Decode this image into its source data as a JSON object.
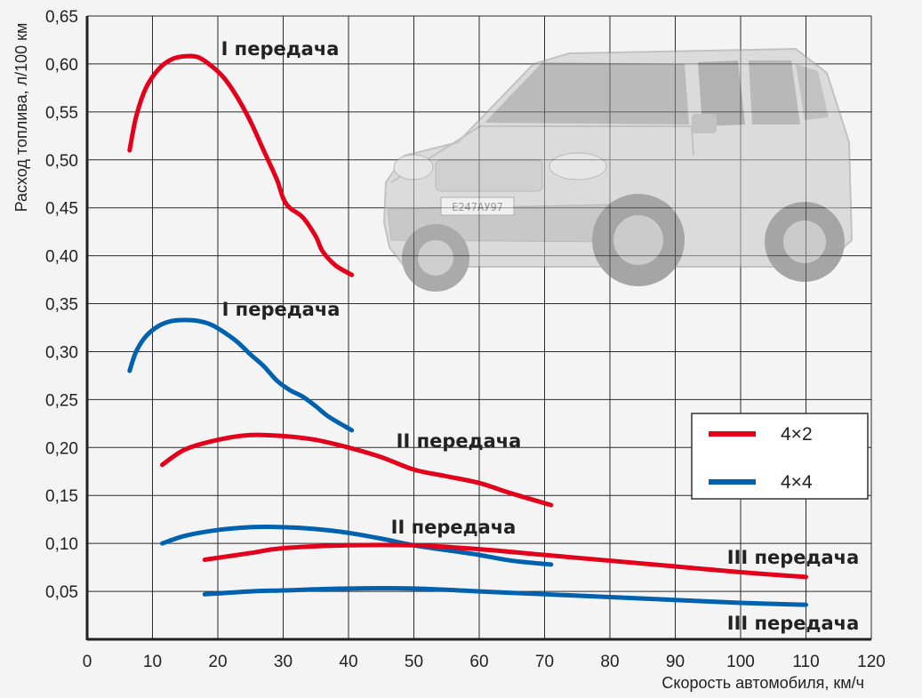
{
  "chart_data": {
    "type": "line",
    "title": "",
    "xlabel": "Скорость автомобиля, км/ч",
    "ylabel": "Расход топлива, л/100 км",
    "xlim": [
      0,
      120
    ],
    "ylim": [
      0,
      0.65
    ],
    "xticks": [
      "0",
      "10",
      "20",
      "30",
      "40",
      "50",
      "60",
      "70",
      "80",
      "90",
      "100",
      "110",
      "120"
    ],
    "yticks": [
      "0,05",
      "0,10",
      "0,15",
      "0,20",
      "0,25",
      "0,30",
      "0,35",
      "0,40",
      "0,45",
      "0,50",
      "0,55",
      "0,60",
      "0,65"
    ],
    "grid": true,
    "legend_position": "right",
    "legend": [
      {
        "name": "4×2",
        "color": "#e3001b"
      },
      {
        "name": "4×4",
        "color": "#0061ae"
      }
    ],
    "series": [
      {
        "group": "4×2",
        "label": "I передача",
        "x": [
          6.5,
          7.5,
          9,
          11,
          13,
          15,
          17,
          19,
          21,
          23,
          25,
          27,
          29,
          30,
          31,
          33,
          35,
          36,
          38,
          40.5
        ],
        "y": [
          0.51,
          0.545,
          0.575,
          0.595,
          0.605,
          0.608,
          0.607,
          0.598,
          0.585,
          0.565,
          0.54,
          0.51,
          0.48,
          0.46,
          0.45,
          0.44,
          0.42,
          0.405,
          0.39,
          0.38
        ]
      },
      {
        "group": "4×4",
        "label": "I передача",
        "x": [
          6.5,
          7.5,
          9,
          11,
          13,
          15,
          17,
          19,
          21,
          23,
          25,
          27,
          29,
          31,
          33,
          35,
          37,
          40.5
        ],
        "y": [
          0.28,
          0.3,
          0.316,
          0.327,
          0.332,
          0.333,
          0.332,
          0.328,
          0.32,
          0.31,
          0.297,
          0.285,
          0.27,
          0.26,
          0.253,
          0.243,
          0.232,
          0.218
        ]
      },
      {
        "group": "4×2",
        "label": "II передача",
        "x": [
          11.5,
          15,
          20,
          25,
          30,
          35,
          40,
          45,
          50,
          55,
          60,
          65,
          71
        ],
        "y": [
          0.182,
          0.198,
          0.208,
          0.213,
          0.212,
          0.208,
          0.2,
          0.19,
          0.177,
          0.17,
          0.163,
          0.152,
          0.14
        ]
      },
      {
        "group": "4×4",
        "label": "II передача",
        "x": [
          11.5,
          15,
          20,
          25,
          30,
          35,
          40,
          45,
          50,
          55,
          60,
          65,
          71
        ],
        "y": [
          0.1,
          0.108,
          0.114,
          0.117,
          0.117,
          0.115,
          0.111,
          0.105,
          0.098,
          0.093,
          0.088,
          0.082,
          0.078
        ]
      },
      {
        "group": "4×2",
        "label": "III передача",
        "x": [
          18,
          25,
          30,
          40,
          50,
          60,
          70,
          80,
          90,
          100,
          110
        ],
        "y": [
          0.083,
          0.09,
          0.095,
          0.098,
          0.098,
          0.094,
          0.088,
          0.082,
          0.076,
          0.07,
          0.065
        ]
      },
      {
        "group": "4×4",
        "label": "III передача",
        "x": [
          18,
          25,
          30,
          40,
          50,
          60,
          70,
          80,
          90,
          100,
          110
        ],
        "y": [
          0.047,
          0.05,
          0.051,
          0.053,
          0.053,
          0.05,
          0.047,
          0.044,
          0.041,
          0.038,
          0.036
        ]
      }
    ]
  },
  "car_plate": "Е247АУ97"
}
